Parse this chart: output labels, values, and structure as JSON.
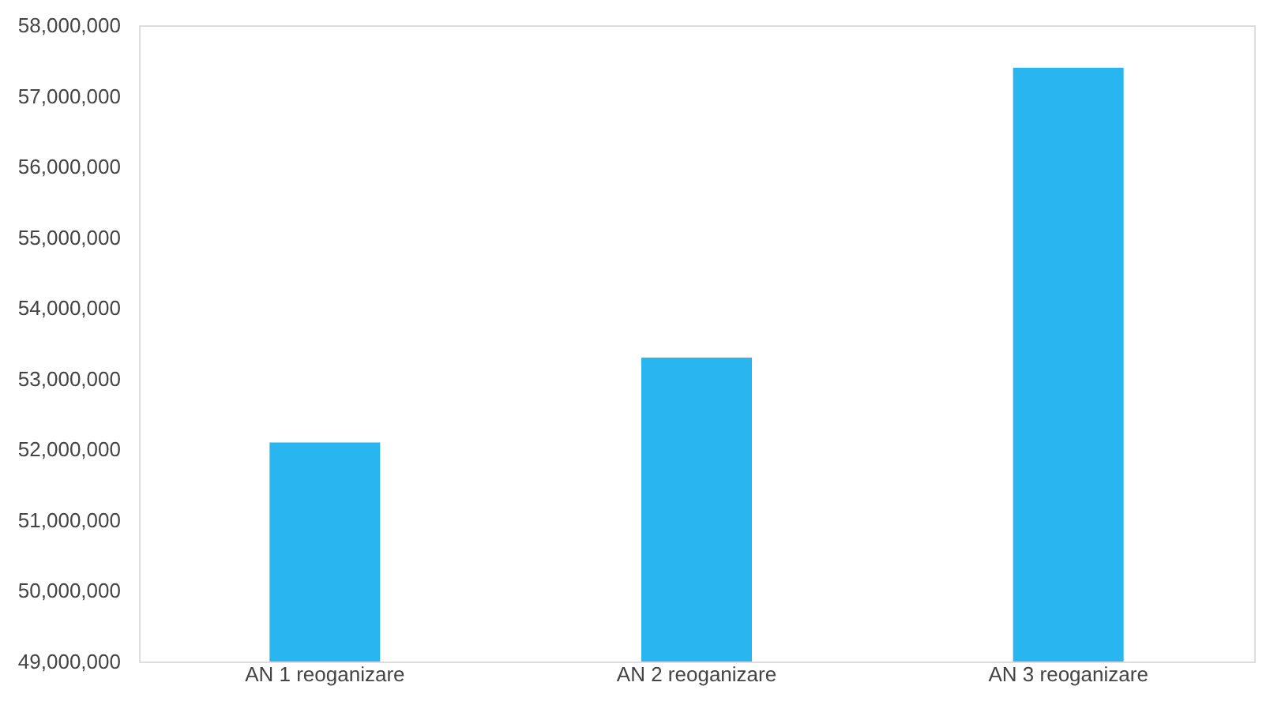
{
  "chart_data": {
    "type": "bar",
    "categories": [
      "AN 1 reoganizare",
      "AN 2 reoganizare",
      "AN 3 reoganizare"
    ],
    "values": [
      52100000,
      53300000,
      57400000
    ],
    "color": "#29b6f0",
    "ylim": [
      49000000,
      58000000
    ],
    "yticks": [
      {
        "value": 49000000,
        "label": "49,000,000"
      },
      {
        "value": 50000000,
        "label": "50,000,000"
      },
      {
        "value": 51000000,
        "label": "51,000,000"
      },
      {
        "value": 52000000,
        "label": "52,000,000"
      },
      {
        "value": 53000000,
        "label": "53,000,000"
      },
      {
        "value": 54000000,
        "label": "54,000,000"
      },
      {
        "value": 55000000,
        "label": "55,000,000"
      },
      {
        "value": 56000000,
        "label": "56,000,000"
      },
      {
        "value": 57000000,
        "label": "57,000,000"
      },
      {
        "value": 58000000,
        "label": "58,000,000"
      }
    ],
    "grid": false
  }
}
